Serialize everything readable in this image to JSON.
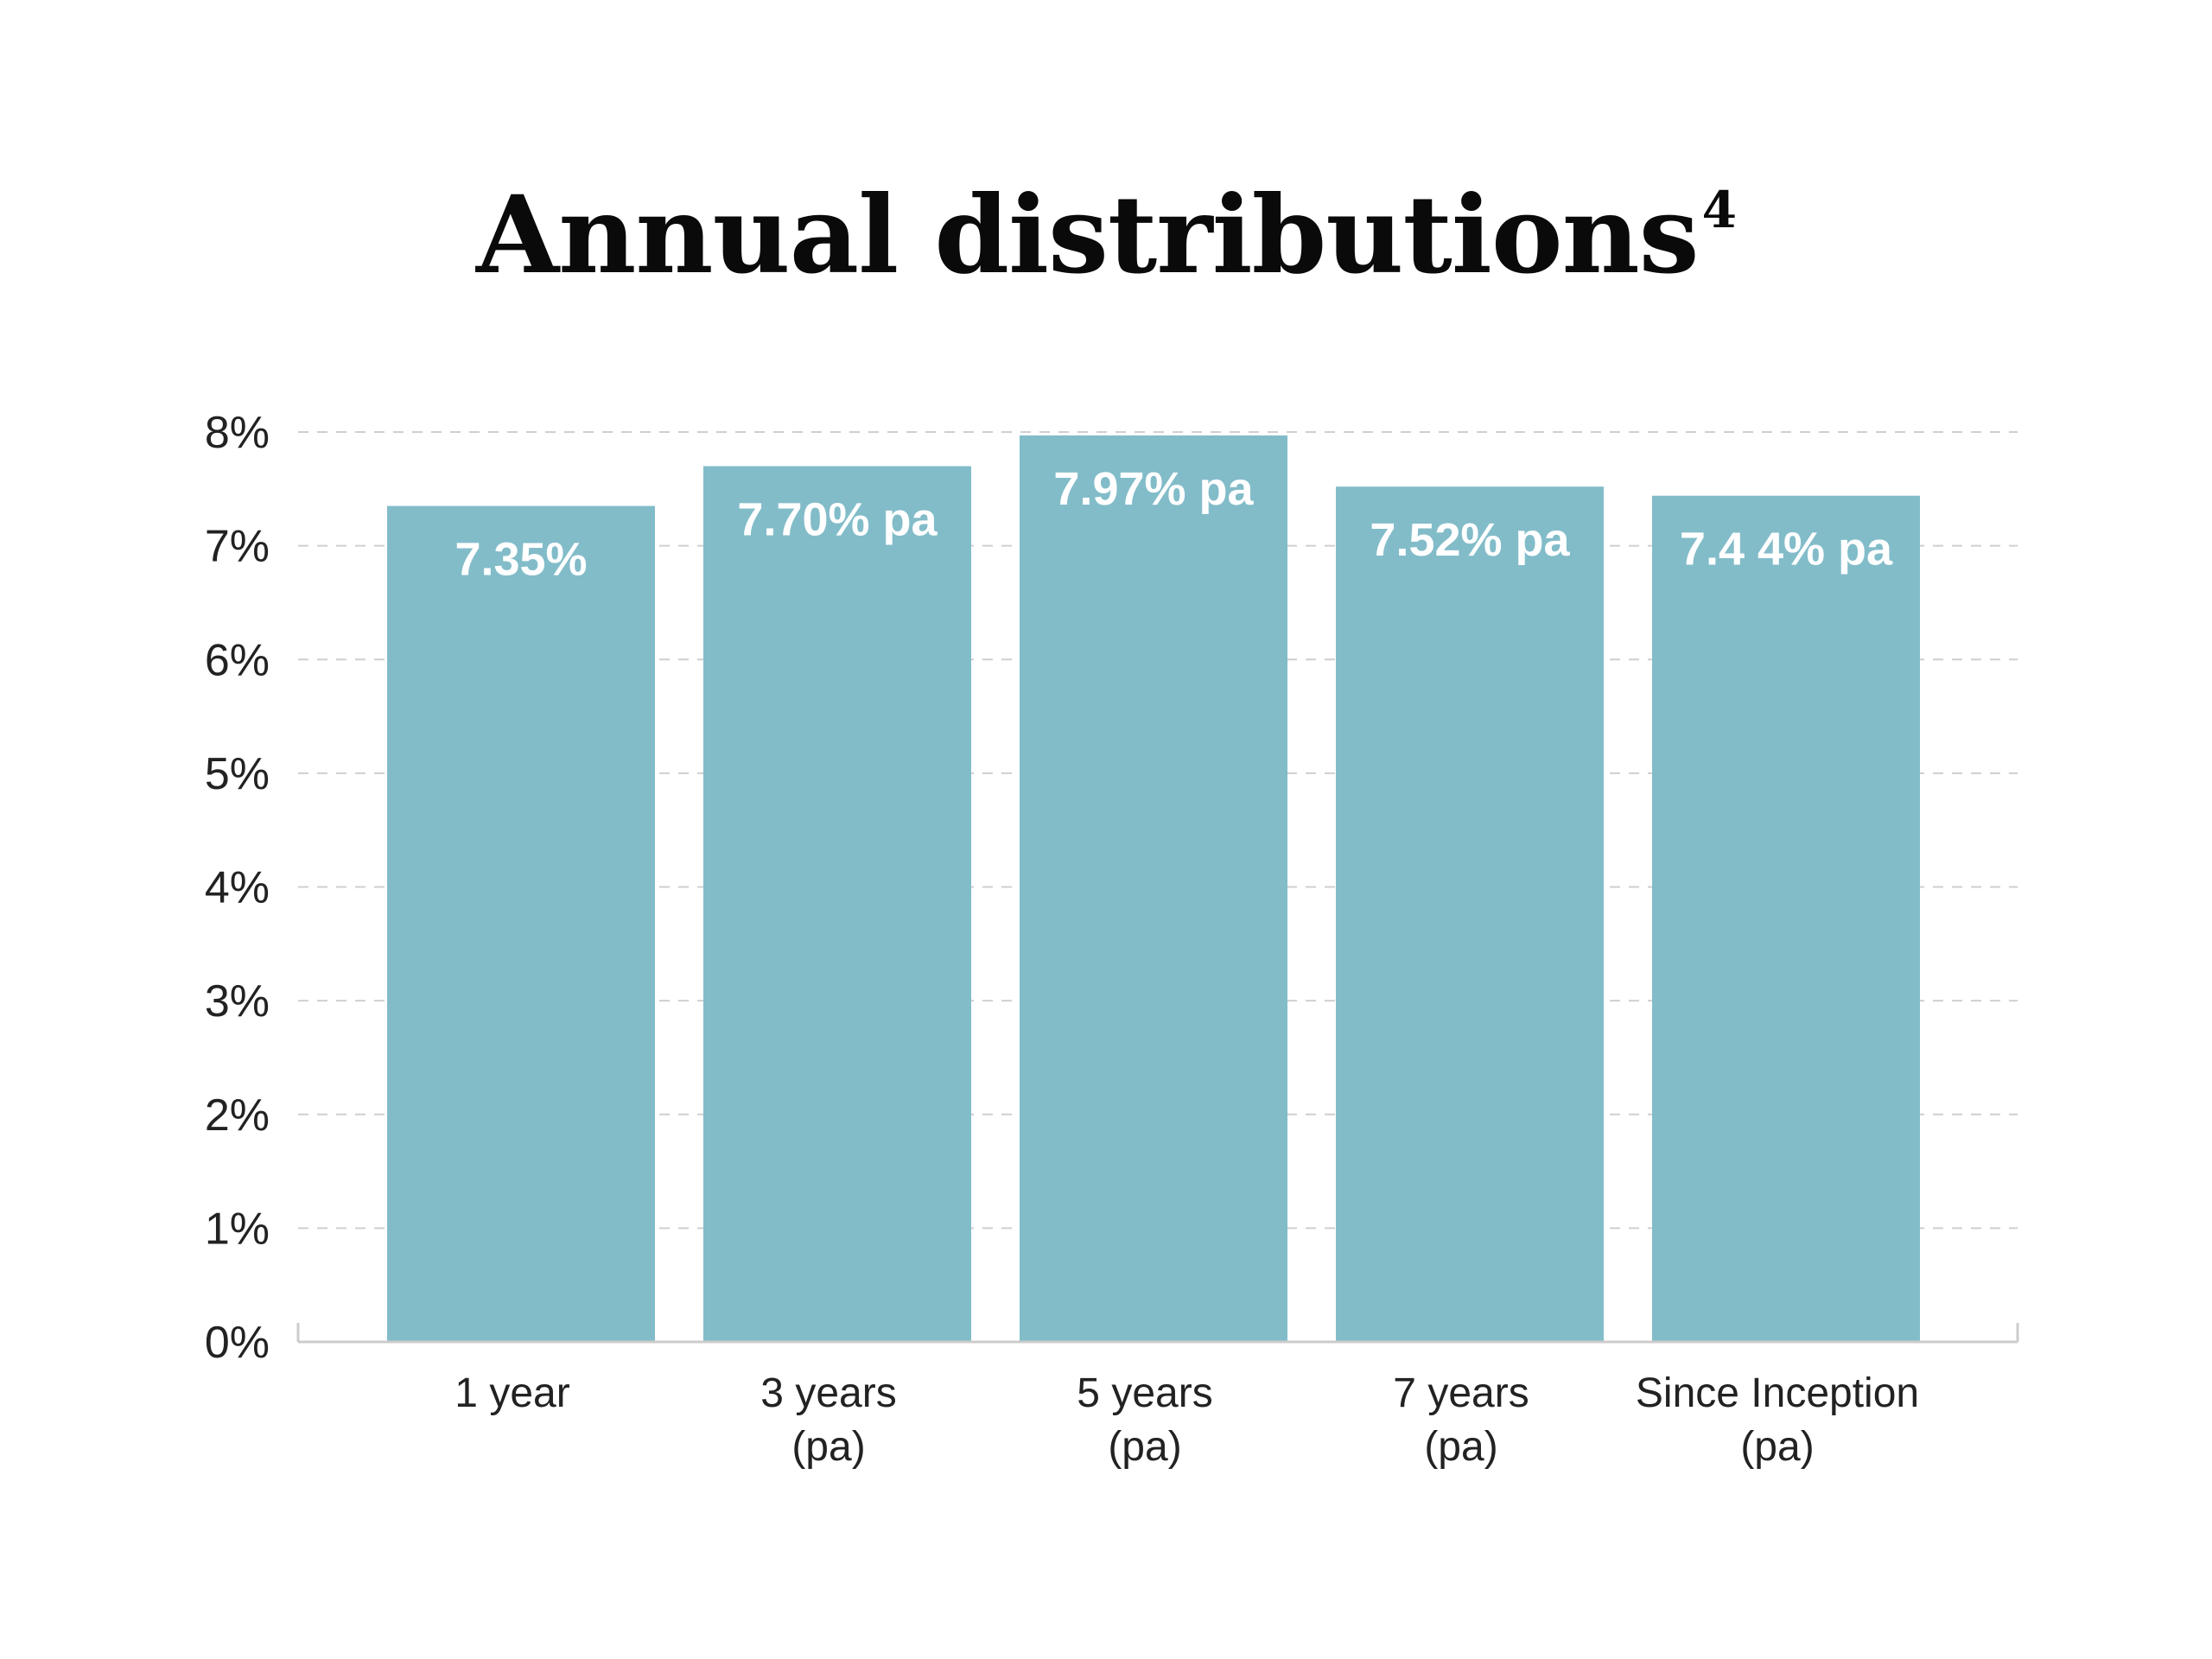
{
  "chart_data": {
    "type": "bar",
    "title": "Annual distributions",
    "title_superscript": "4",
    "categories": [
      [
        "1 year"
      ],
      [
        "3 years",
        "(pa)"
      ],
      [
        "5 years",
        "(pa)"
      ],
      [
        "7 years",
        "(pa)"
      ],
      [
        "Since Inception",
        "(pa)"
      ]
    ],
    "values": [
      7.35,
      7.7,
      7.97,
      7.52,
      7.44
    ],
    "data_labels": [
      "7.35%",
      "7.70% pa",
      "7.97% pa",
      "7.52% pa",
      "7.4 4% pa"
    ],
    "yticks": [
      "0%",
      "1%",
      "2%",
      "3%",
      "4%",
      "5%",
      "6%",
      "7%",
      "8%"
    ],
    "ylim": [
      0,
      8
    ],
    "grid": true,
    "bar_color": "#82bcc9",
    "grid_color": "#cfcfcf"
  }
}
